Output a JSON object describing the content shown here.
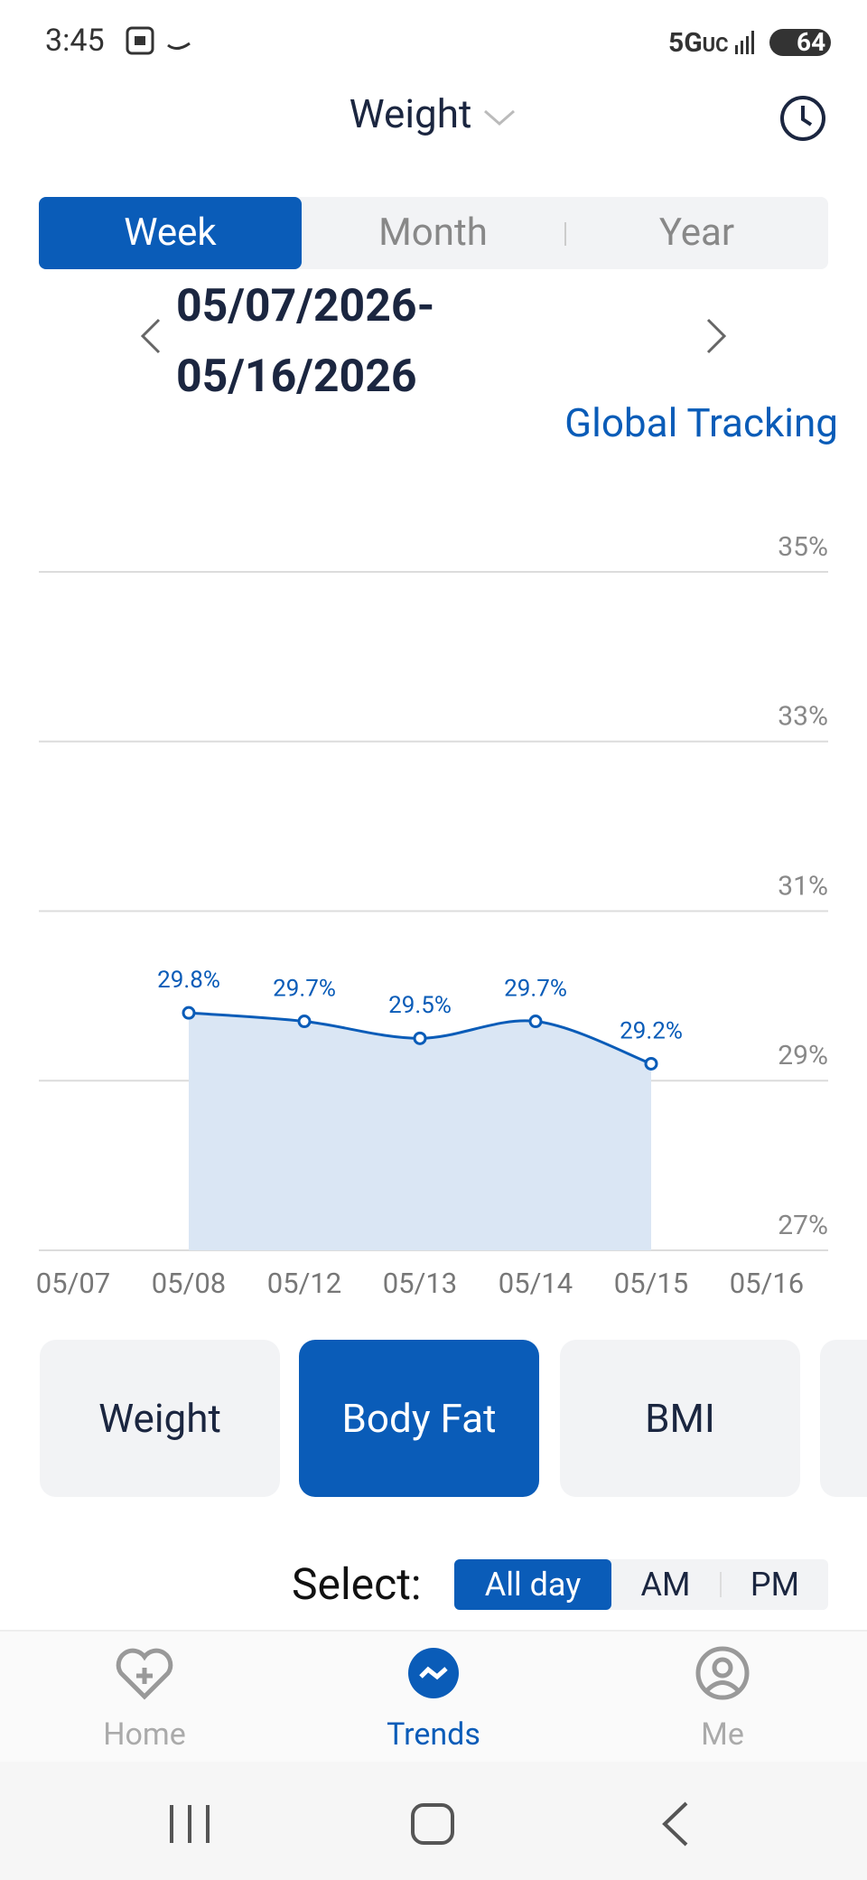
{
  "status_bar": {
    "time": "3:45",
    "network": "5G",
    "network_sub": "UC",
    "battery": "64"
  },
  "header": {
    "title": "Weight"
  },
  "period_tabs": [
    "Week",
    "Month",
    "Year"
  ],
  "date_range": {
    "start": "05/07/2026-",
    "end": "05/16/2026"
  },
  "link": "Global Tracking",
  "chart_data": {
    "type": "line",
    "categories": [
      "05/07",
      "05/08",
      "05/12",
      "05/13",
      "05/14",
      "05/15",
      "05/16"
    ],
    "values": [
      null,
      29.8,
      29.7,
      29.5,
      29.7,
      29.2,
      null
    ],
    "value_labels": [
      null,
      "29.8%",
      "29.7%",
      "29.5%",
      "29.7%",
      "29.2%",
      null
    ],
    "color": "#0a5cb8",
    "area_color": "#dae6f4",
    "ylim": [
      27,
      35
    ],
    "yticks": [
      {
        "value": 27,
        "label": "27%"
      },
      {
        "value": 29,
        "label": "29%"
      },
      {
        "value": 31,
        "label": "31%"
      },
      {
        "value": 33,
        "label": "33%"
      },
      {
        "value": 35,
        "label": "35%"
      }
    ],
    "grid": true
  },
  "metrics": [
    "Weight",
    "Body Fat",
    "BMI"
  ],
  "select": {
    "label": "Select:",
    "options": [
      "All day",
      "AM",
      "PM"
    ]
  },
  "nav": [
    "Home",
    "Trends",
    "Me"
  ]
}
